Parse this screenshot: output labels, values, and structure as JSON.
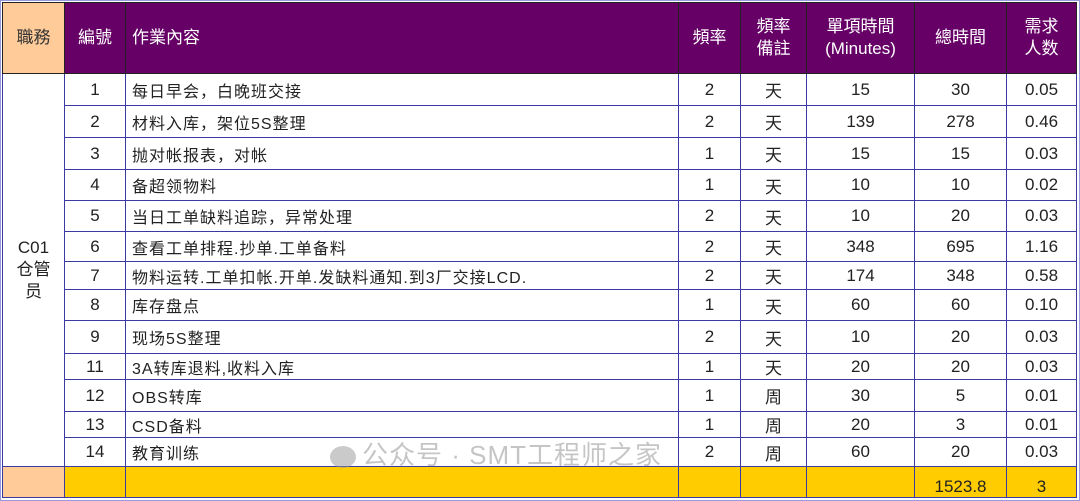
{
  "headers": {
    "role": "職務",
    "no": "編號",
    "task": "作業內容",
    "freq": "頻率",
    "freq_note": "頻率\n備註",
    "unit_time": "單項時間\n(Minutes)",
    "total_time": "總時間",
    "headcount": "需求\n人数"
  },
  "role": "C01\n仓管\n员",
  "rows": [
    {
      "no": "1",
      "task": "每日早会，白晚班交接",
      "freq": "2",
      "note": "天",
      "unit": "15",
      "total": "30",
      "hc": "0.05"
    },
    {
      "no": "2",
      "task": "材料入库，架位5S整理",
      "freq": "2",
      "note": "天",
      "unit": "139",
      "total": "278",
      "hc": "0.46"
    },
    {
      "no": "3",
      "task": "抛对帐报表，对帐",
      "freq": "1",
      "note": "天",
      "unit": "15",
      "total": "15",
      "hc": "0.03"
    },
    {
      "no": "4",
      "task": "备超领物料",
      "freq": "1",
      "note": "天",
      "unit": "10",
      "total": "10",
      "hc": "0.02"
    },
    {
      "no": "5",
      "task": "当日工单缺料追踪，异常处理",
      "freq": "2",
      "note": "天",
      "unit": "10",
      "total": "20",
      "hc": "0.03"
    },
    {
      "no": "6",
      "task": "查看工单排程.抄单.工单备料",
      "freq": "2",
      "note": "天",
      "unit": "348",
      "total": "695",
      "hc": "1.16"
    },
    {
      "no": "7",
      "task": "物料运转.工单扣帐.开单.发缺料通知.到3厂交接LCD.",
      "freq": "2",
      "note": "天",
      "unit": "174",
      "total": "348",
      "hc": "0.58"
    },
    {
      "no": "8",
      "task": "库存盘点",
      "freq": "1",
      "note": "天",
      "unit": "60",
      "total": "60",
      "hc": "0.10"
    },
    {
      "no": "9",
      "task": "现场5S整理",
      "freq": "2",
      "note": "天",
      "unit": "10",
      "total": "20",
      "hc": "0.03"
    },
    {
      "no": "11",
      "task": "3A转库退料,收料入库",
      "freq": "1",
      "note": "天",
      "unit": "20",
      "total": "20",
      "hc": "0.03"
    },
    {
      "no": "12",
      "task": "OBS转库",
      "freq": "1",
      "note": "周",
      "unit": "30",
      "total": "5",
      "hc": "0.01"
    },
    {
      "no": "13",
      "task": "CSD备料",
      "freq": "1",
      "note": "周",
      "unit": "20",
      "total": "3",
      "hc": "0.01"
    },
    {
      "no": "14",
      "task": "教育训练",
      "freq": "2",
      "note": "周",
      "unit": "60",
      "total": "20",
      "hc": "0.03"
    }
  ],
  "totals": {
    "total_time": "1523.8",
    "headcount": "3"
  },
  "watermark": "公众号 · SMT工程师之家",
  "colors": {
    "header": "#660066",
    "role_header": "#ffcc99",
    "total_row": "#ffcc00",
    "border": "#3a3aa0"
  }
}
